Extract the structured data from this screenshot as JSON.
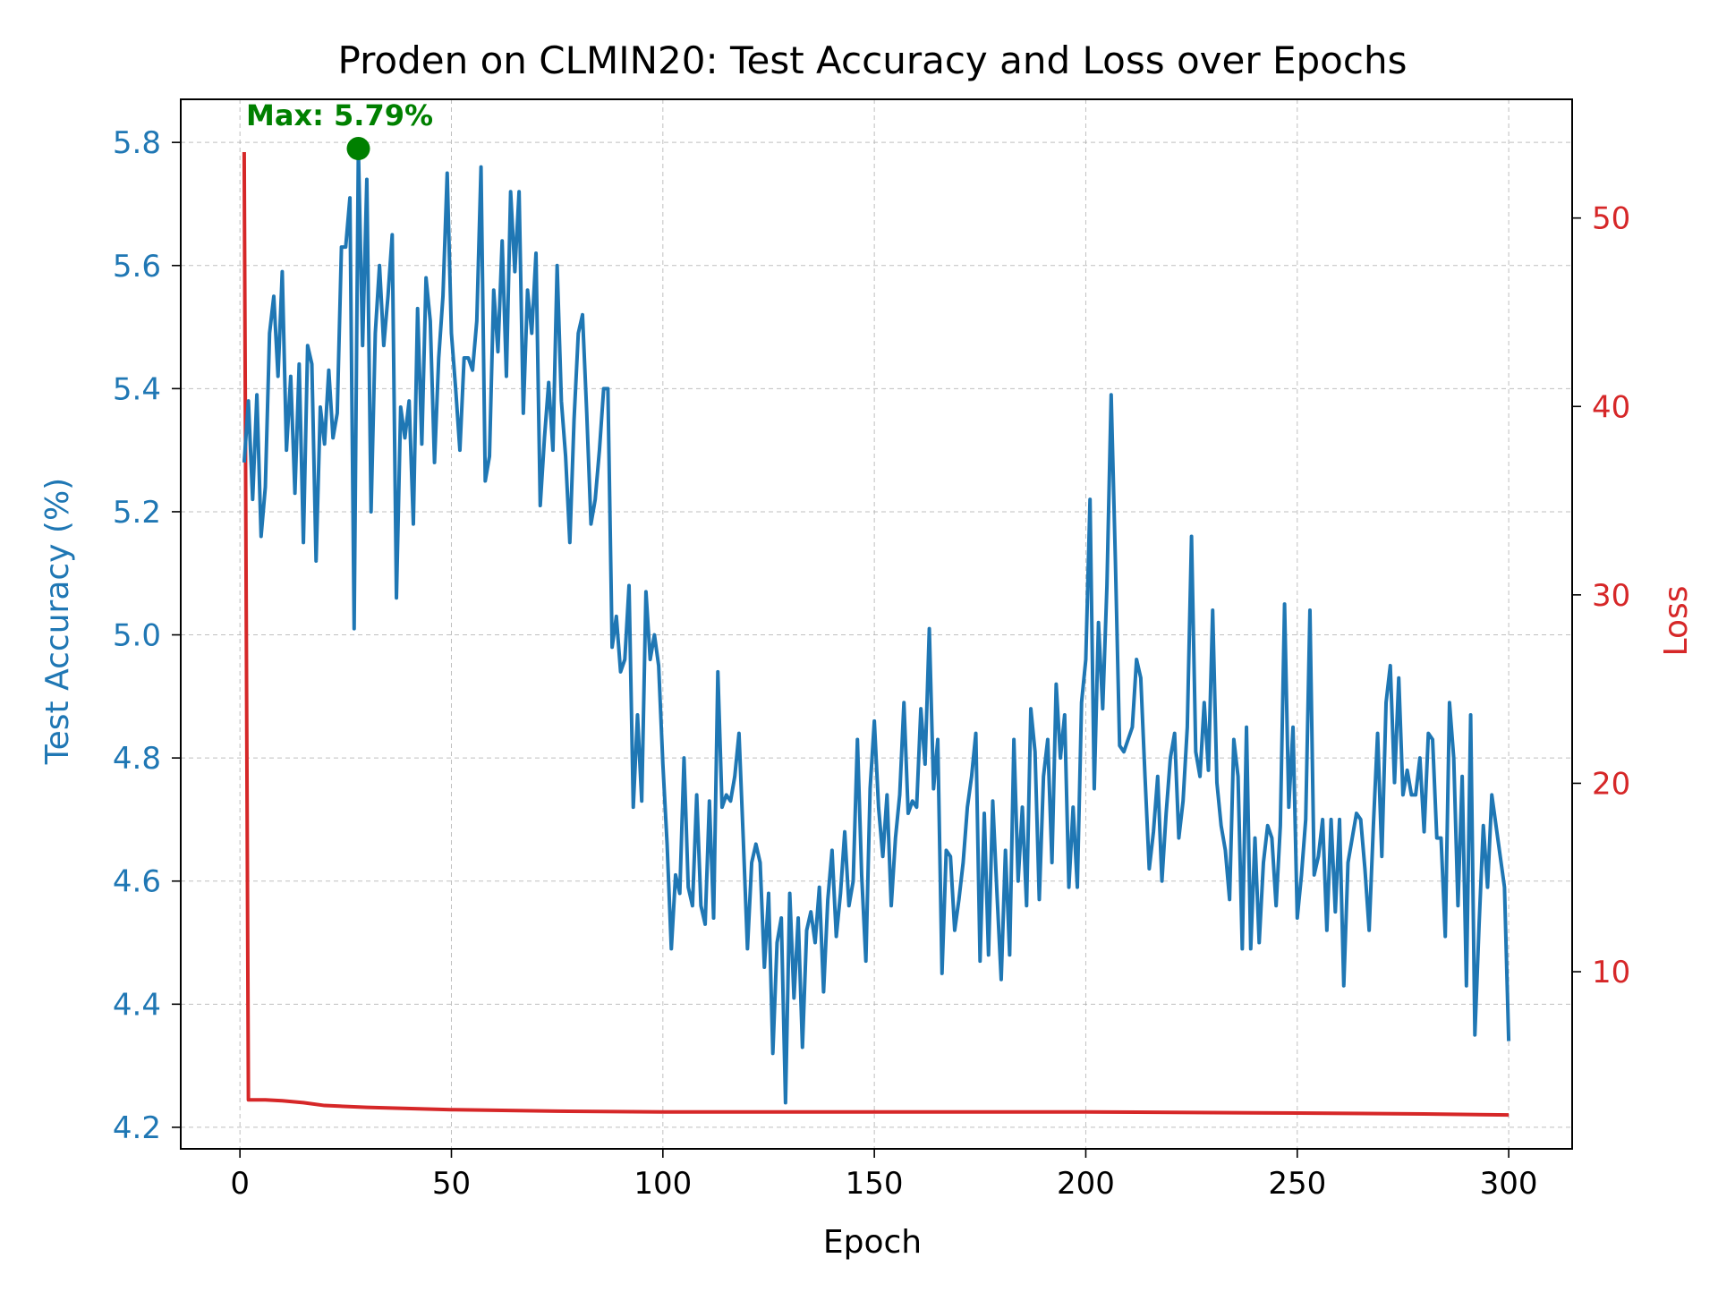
{
  "chart_data": {
    "type": "line",
    "title": "Proden on CLMIN20: Test Accuracy and Loss over Epochs",
    "xlabel": "Epoch",
    "ylabel_left": "Test Accuracy (%)",
    "ylabel_right": "Loss",
    "xlim": [
      -14,
      315
    ],
    "ylim_left": [
      4.165,
      5.87
    ],
    "ylim_right": [
      0.6,
      56.3
    ],
    "x_ticks": [
      0,
      50,
      100,
      150,
      200,
      250,
      300
    ],
    "y_left_ticks": [
      4.2,
      4.4,
      4.6,
      4.8,
      5.0,
      5.2,
      5.4,
      5.6,
      5.8
    ],
    "y_right_ticks": [
      10,
      20,
      30,
      40,
      50
    ],
    "grid": true,
    "colors": {
      "accuracy": "#1f77b4",
      "loss": "#d62728",
      "max_marker": "#008000",
      "axes": "#000000"
    },
    "annotation": {
      "text": "Max: 5.79%",
      "x": 28,
      "y": 5.79
    },
    "series": [
      {
        "axis": "left",
        "color": "#1f77b4",
        "x_start": 1,
        "x_step": 1,
        "values": [
          5.28,
          5.38,
          5.22,
          5.39,
          5.16,
          5.24,
          5.49,
          5.55,
          5.42,
          5.59,
          5.3,
          5.42,
          5.23,
          5.44,
          5.15,
          5.47,
          5.44,
          5.12,
          5.37,
          5.31,
          5.43,
          5.32,
          5.36,
          5.63,
          5.63,
          5.71,
          5.01,
          5.79,
          5.47,
          5.74,
          5.2,
          5.49,
          5.6,
          5.47,
          5.55,
          5.65,
          5.06,
          5.37,
          5.32,
          5.38,
          5.18,
          5.53,
          5.31,
          5.58,
          5.51,
          5.28,
          5.45,
          5.55,
          5.75,
          5.49,
          5.4,
          5.3,
          5.45,
          5.45,
          5.43,
          5.51,
          5.76,
          5.25,
          5.29,
          5.56,
          5.46,
          5.64,
          5.42,
          5.72,
          5.59,
          5.72,
          5.36,
          5.56,
          5.49,
          5.62,
          5.21,
          5.32,
          5.41,
          5.3,
          5.6,
          5.38,
          5.29,
          5.15,
          5.35,
          5.49,
          5.52,
          5.36,
          5.18,
          5.22,
          5.3,
          5.4,
          5.4,
          4.98,
          5.03,
          4.94,
          4.96,
          5.08,
          4.72,
          4.87,
          4.73,
          5.07,
          4.96,
          5.0,
          4.95,
          4.79,
          4.66,
          4.49,
          4.61,
          4.58,
          4.8,
          4.59,
          4.56,
          4.74,
          4.56,
          4.53,
          4.73,
          4.54,
          4.94,
          4.72,
          4.74,
          4.73,
          4.77,
          4.84,
          4.67,
          4.49,
          4.63,
          4.66,
          4.63,
          4.46,
          4.58,
          4.32,
          4.5,
          4.54,
          4.24,
          4.58,
          4.41,
          4.54,
          4.33,
          4.52,
          4.55,
          4.5,
          4.59,
          4.42,
          4.57,
          4.65,
          4.51,
          4.58,
          4.68,
          4.56,
          4.6,
          4.83,
          4.61,
          4.47,
          4.75,
          4.86,
          4.72,
          4.64,
          4.74,
          4.56,
          4.67,
          4.74,
          4.89,
          4.71,
          4.73,
          4.72,
          4.88,
          4.79,
          5.01,
          4.75,
          4.83,
          4.45,
          4.65,
          4.64,
          4.52,
          4.57,
          4.63,
          4.72,
          4.77,
          4.84,
          4.47,
          4.71,
          4.48,
          4.73,
          4.58,
          4.44,
          4.65,
          4.48,
          4.83,
          4.6,
          4.72,
          4.56,
          4.88,
          4.81,
          4.57,
          4.77,
          4.83,
          4.63,
          4.92,
          4.8,
          4.87,
          4.59,
          4.72,
          4.59,
          4.89,
          4.96,
          5.22,
          4.75,
          5.02,
          4.88,
          5.08,
          5.39,
          5.12,
          4.82,
          4.81,
          4.83,
          4.85,
          4.96,
          4.93,
          4.77,
          4.62,
          4.68,
          4.77,
          4.6,
          4.71,
          4.8,
          4.84,
          4.67,
          4.73,
          4.85,
          5.16,
          4.81,
          4.77,
          4.89,
          4.78,
          5.04,
          4.76,
          4.69,
          4.65,
          4.57,
          4.83,
          4.77,
          4.49,
          4.85,
          4.49,
          4.67,
          4.5,
          4.63,
          4.69,
          4.67,
          4.56,
          4.69,
          5.05,
          4.72,
          4.85,
          4.54,
          4.61,
          4.7,
          5.04,
          4.61,
          4.64,
          4.7,
          4.52,
          4.7,
          4.55,
          4.7,
          4.43,
          4.63,
          4.67,
          4.71,
          4.7,
          4.62,
          4.52,
          4.69,
          4.84,
          4.64,
          4.89,
          4.95,
          4.76,
          4.93,
          4.74,
          4.78,
          4.74,
          4.74,
          4.8,
          4.68,
          4.84,
          4.83,
          4.67,
          4.67,
          4.51,
          4.89,
          4.8,
          4.56,
          4.77,
          4.43,
          4.87,
          4.35,
          4.53,
          4.69,
          4.59,
          4.74,
          4.69,
          4.64,
          4.59,
          4.34
        ]
      },
      {
        "axis": "right",
        "color": "#d62728",
        "x": [
          1,
          2,
          3,
          6,
          10,
          15,
          20,
          30,
          50,
          75,
          100,
          150,
          200,
          250,
          280,
          300
        ],
        "values": [
          53.5,
          3.2,
          3.2,
          3.2,
          3.15,
          3.05,
          2.9,
          2.8,
          2.68,
          2.6,
          2.56,
          2.56,
          2.56,
          2.5,
          2.45,
          2.4
        ]
      }
    ]
  }
}
